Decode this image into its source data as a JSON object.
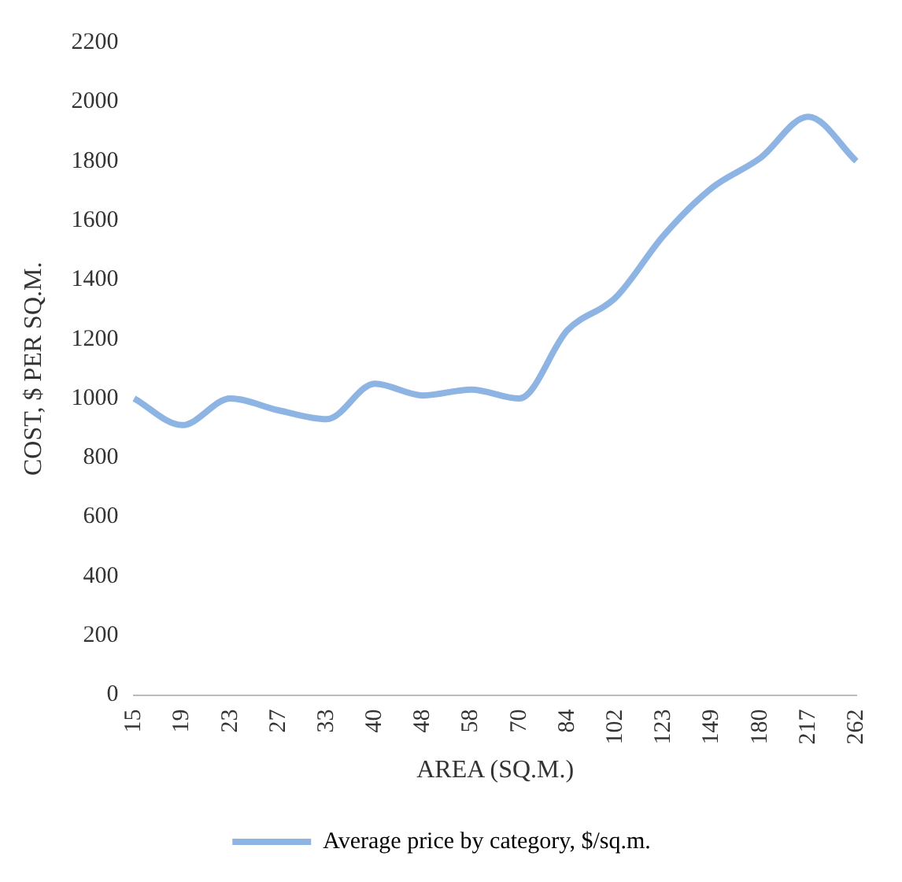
{
  "chart_data": {
    "type": "line",
    "xlabel": "AREA (SQ.M.)",
    "ylabel": "COST, $ PER SQ.M.",
    "categories": [
      "15",
      "19",
      "23",
      "27",
      "33",
      "40",
      "48",
      "58",
      "70",
      "84",
      "102",
      "123",
      "149",
      "180",
      "217",
      "262"
    ],
    "series": [
      {
        "name": "Average price by category, $/sq.m.",
        "color": "#8db4e2",
        "values": [
          1000,
          910,
          1000,
          960,
          930,
          1050,
          1010,
          1030,
          1000,
          1230,
          1340,
          1550,
          1710,
          1810,
          1950,
          1800
        ]
      }
    ],
    "ylim": [
      0,
      2200
    ],
    "yticks": [
      0,
      200,
      400,
      600,
      800,
      1000,
      1200,
      1400,
      1600,
      1800,
      2000,
      2200
    ],
    "grid": false,
    "legend": "bottom",
    "marker": "none",
    "line_style": "solid"
  }
}
